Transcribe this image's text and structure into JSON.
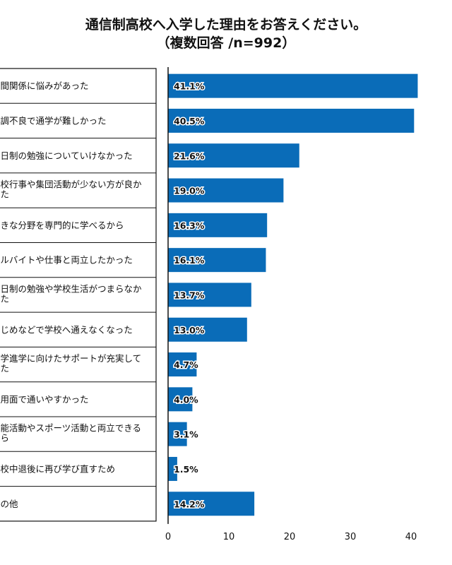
{
  "chart_data": {
    "type": "bar",
    "orientation": "horizontal",
    "title": "通信制高校へ入学した理由をお答えください。",
    "subtitle": "（複数回答 /n=992）",
    "categories": [
      "人間関係に悩みがあった",
      "体調不良で通学が難しかった",
      "全日制の勉強についていけなかった",
      "学校行事や集団活動が少ない方が良かった",
      "好きな分野を専門的に学べるから",
      "アルバイトや仕事と両立したかった",
      "全日制の勉強や学校生活がつまらなかった",
      "いじめなどで学校へ通えなくなった",
      "大学進学に向けたサポートが充実していた",
      "費用面で通いやすかった",
      "芸能活動やスポーツ活動と両立できるから",
      "高校中退後に再び学び直すため",
      "その他"
    ],
    "values": [
      41.1,
      40.5,
      21.6,
      19.0,
      16.3,
      16.1,
      13.7,
      13.0,
      4.7,
      4.0,
      3.1,
      1.5,
      14.2
    ],
    "value_labels": [
      "41.1%",
      "40.5%",
      "21.6%",
      "19.0%",
      "16.3%",
      "16.1%",
      "13.7%",
      "13.0%",
      "4.7%",
      "4.0%",
      "3.1%",
      "1.5%",
      "14.2%"
    ],
    "xticks": [
      0,
      10,
      20,
      30,
      40
    ],
    "xlim": [
      0,
      45
    ],
    "bar_color": "#0a6cb8",
    "grid": false
  }
}
